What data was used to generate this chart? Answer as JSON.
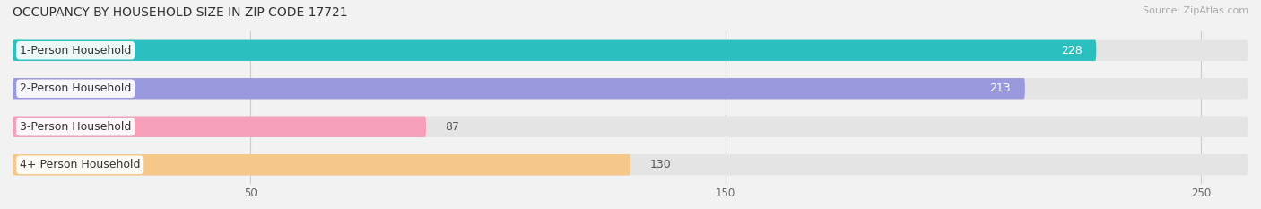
{
  "title": "OCCUPANCY BY HOUSEHOLD SIZE IN ZIP CODE 17721",
  "source": "Source: ZipAtlas.com",
  "categories": [
    "1-Person Household",
    "2-Person Household",
    "3-Person Household",
    "4+ Person Household"
  ],
  "values": [
    228,
    213,
    87,
    130
  ],
  "bar_colors": [
    "#2bbfbf",
    "#9999dd",
    "#f5a0b8",
    "#f5c88a"
  ],
  "background_color": "#f2f2f2",
  "bar_bg_color": "#e4e4e4",
  "xlim": [
    0,
    260
  ],
  "xticks": [
    50,
    150,
    250
  ],
  "figsize": [
    14.06,
    2.33
  ],
  "dpi": 100,
  "title_fontsize": 10,
  "source_fontsize": 8,
  "value_fontsize": 9,
  "cat_fontsize": 9
}
